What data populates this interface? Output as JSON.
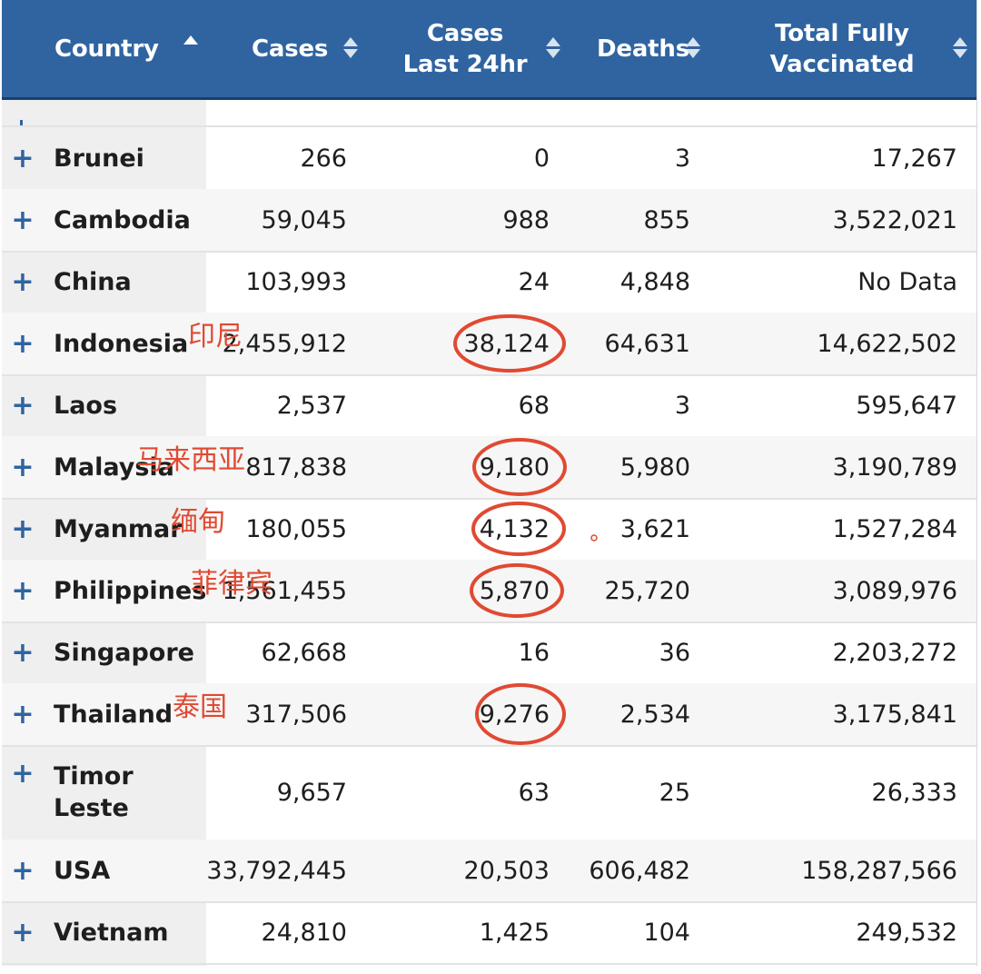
{
  "chart_data": {
    "type": "table",
    "columns": [
      {
        "key": "country",
        "label": "Country",
        "sort": "asc"
      },
      {
        "key": "cases",
        "label": "Cases",
        "sort": "none"
      },
      {
        "key": "cases_24h",
        "label": "Cases Last 24hr",
        "sort": "none"
      },
      {
        "key": "deaths",
        "label": "Deaths",
        "sort": "none"
      },
      {
        "key": "vaccinated",
        "label": "Total Fully Vaccinated",
        "sort": "none"
      }
    ],
    "expand_symbol": "+",
    "rows": [
      {
        "country": "Brunei",
        "cases": "266",
        "cases_24h": "0",
        "deaths": "3",
        "vaccinated": "17,267"
      },
      {
        "country": "Cambodia",
        "cases": "59,045",
        "cases_24h": "988",
        "deaths": "855",
        "vaccinated": "3,522,021"
      },
      {
        "country": "China",
        "cases": "103,993",
        "cases_24h": "24",
        "deaths": "4,848",
        "vaccinated": "No Data"
      },
      {
        "country": "Indonesia",
        "cases": "2,455,912",
        "cases_24h": "38,124",
        "deaths": "64,631",
        "vaccinated": "14,622,502"
      },
      {
        "country": "Laos",
        "cases": "2,537",
        "cases_24h": "68",
        "deaths": "3",
        "vaccinated": "595,647"
      },
      {
        "country": "Malaysia",
        "cases": "817,838",
        "cases_24h": "9,180",
        "deaths": "5,980",
        "vaccinated": "3,190,789"
      },
      {
        "country": "Myanmar",
        "cases": "180,055",
        "cases_24h": "4,132",
        "deaths": "3,621",
        "vaccinated": "1,527,284"
      },
      {
        "country": "Philippines",
        "cases": "1,561,455",
        "cases_24h": "5,870",
        "deaths": "25,720",
        "vaccinated": "3,089,976"
      },
      {
        "country": "Singapore",
        "cases": "62,668",
        "cases_24h": "16",
        "deaths": "36",
        "vaccinated": "2,203,272"
      },
      {
        "country": "Thailand",
        "cases": "317,506",
        "cases_24h": "9,276",
        "deaths": "2,534",
        "vaccinated": "3,175,841"
      },
      {
        "country": "Timor Leste",
        "cases": "9,657",
        "cases_24h": "63",
        "deaths": "25",
        "vaccinated": "26,333"
      },
      {
        "country": "USA",
        "cases": "33,792,445",
        "cases_24h": "20,503",
        "deaths": "606,482",
        "vaccinated": "158,287,566"
      },
      {
        "country": "Vietnam",
        "cases": "24,810",
        "cases_24h": "1,425",
        "deaths": "104",
        "vaccinated": "249,532"
      }
    ]
  },
  "annotations": {
    "color": "#e04a32",
    "labels": [
      {
        "country": "Indonesia",
        "text": "印尼"
      },
      {
        "country": "Malaysia",
        "text": "马来西亚"
      },
      {
        "country": "Myanmar",
        "text": "缅甸"
      },
      {
        "country": "Philippines",
        "text": "菲律宾"
      },
      {
        "country": "Thailand",
        "text": "泰国"
      }
    ],
    "circled_column": "cases_24h",
    "circled_countries": [
      "Indonesia",
      "Malaysia",
      "Myanmar",
      "Philippines",
      "Thailand"
    ]
  },
  "colors": {
    "header_bg": "#2f64a1",
    "accent": "#2f64a1",
    "annotation": "#e04a32"
  }
}
